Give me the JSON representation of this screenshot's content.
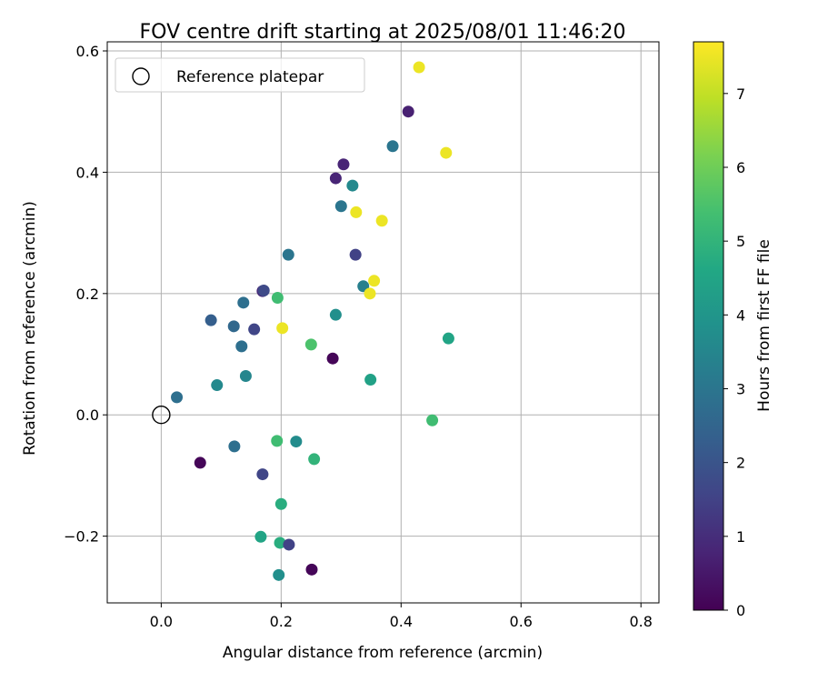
{
  "chart_data": {
    "type": "scatter",
    "title": "FOV centre drift starting at 2025/08/01 11:46:20",
    "xlabel": "Angular distance from reference (arcmin)",
    "ylabel": "Rotation from reference (arcmin)",
    "xlim": [
      -0.09,
      0.83
    ],
    "ylim": [
      -0.31,
      0.615
    ],
    "xticks": [
      0.0,
      0.2,
      0.4,
      0.6,
      0.8
    ],
    "xtick_labels": [
      "0.0",
      "0.2",
      "0.4",
      "0.6",
      "0.8"
    ],
    "yticks": [
      -0.2,
      0.0,
      0.2,
      0.4,
      0.6
    ],
    "ytick_labels": [
      "−0.2",
      "0.0",
      "0.2",
      "0.4",
      "0.6"
    ],
    "grid": true,
    "legend": {
      "placement": "top-left",
      "entries": [
        "Reference platepar"
      ]
    },
    "reference_point": {
      "x": 0.0,
      "y": 0.0,
      "marker": "open-circle"
    },
    "colorbar": {
      "label": "Hours from first FF file",
      "colormap": "viridis",
      "range": [
        0,
        7.7
      ],
      "ticks": [
        0,
        1,
        2,
        3,
        4,
        5,
        6,
        7
      ],
      "tick_labels": [
        "0",
        "1",
        "2",
        "3",
        "4",
        "5",
        "6",
        "7"
      ]
    },
    "points": [
      {
        "x": 0.43,
        "y": 0.573,
        "c": 7.5
      },
      {
        "x": 0.412,
        "y": 0.5,
        "c": 0.7
      },
      {
        "x": 0.386,
        "y": 0.443,
        "c": 3.0
      },
      {
        "x": 0.475,
        "y": 0.432,
        "c": 7.5
      },
      {
        "x": 0.304,
        "y": 0.413,
        "c": 0.8
      },
      {
        "x": 0.291,
        "y": 0.39,
        "c": 0.8
      },
      {
        "x": 0.319,
        "y": 0.378,
        "c": 3.6
      },
      {
        "x": 0.3,
        "y": 0.344,
        "c": 3.0
      },
      {
        "x": 0.325,
        "y": 0.334,
        "c": 7.5
      },
      {
        "x": 0.368,
        "y": 0.32,
        "c": 7.5
      },
      {
        "x": 0.212,
        "y": 0.264,
        "c": 3.0
      },
      {
        "x": 0.324,
        "y": 0.264,
        "c": 1.5
      },
      {
        "x": 0.355,
        "y": 0.221,
        "c": 7.5
      },
      {
        "x": 0.337,
        "y": 0.212,
        "c": 3.3
      },
      {
        "x": 0.169,
        "y": 0.204,
        "c": 0.9
      },
      {
        "x": 0.171,
        "y": 0.205,
        "c": 1.7
      },
      {
        "x": 0.348,
        "y": 0.2,
        "c": 7.5
      },
      {
        "x": 0.194,
        "y": 0.193,
        "c": 5.3
      },
      {
        "x": 0.137,
        "y": 0.185,
        "c": 2.8
      },
      {
        "x": 0.291,
        "y": 0.165,
        "c": 3.8
      },
      {
        "x": 0.083,
        "y": 0.156,
        "c": 2.3
      },
      {
        "x": 0.121,
        "y": 0.146,
        "c": 2.6
      },
      {
        "x": 0.202,
        "y": 0.143,
        "c": 7.5
      },
      {
        "x": 0.155,
        "y": 0.141,
        "c": 1.6
      },
      {
        "x": 0.479,
        "y": 0.126,
        "c": 4.5
      },
      {
        "x": 0.25,
        "y": 0.116,
        "c": 5.5
      },
      {
        "x": 0.134,
        "y": 0.113,
        "c": 2.8
      },
      {
        "x": 0.286,
        "y": 0.093,
        "c": 0.1
      },
      {
        "x": 0.141,
        "y": 0.064,
        "c": 3.5
      },
      {
        "x": 0.349,
        "y": 0.058,
        "c": 4.4
      },
      {
        "x": 0.093,
        "y": 0.049,
        "c": 3.6
      },
      {
        "x": 0.026,
        "y": 0.029,
        "c": 2.8
      },
      {
        "x": 0.452,
        "y": -0.009,
        "c": 5.3
      },
      {
        "x": 0.193,
        "y": -0.043,
        "c": 5.3
      },
      {
        "x": 0.225,
        "y": -0.044,
        "c": 3.7
      },
      {
        "x": 0.122,
        "y": -0.052,
        "c": 2.8
      },
      {
        "x": 0.255,
        "y": -0.073,
        "c": 5.0
      },
      {
        "x": 0.065,
        "y": -0.079,
        "c": 0.1
      },
      {
        "x": 0.169,
        "y": -0.098,
        "c": 1.6
      },
      {
        "x": 0.2,
        "y": -0.147,
        "c": 4.8
      },
      {
        "x": 0.166,
        "y": -0.201,
        "c": 4.5
      },
      {
        "x": 0.198,
        "y": -0.211,
        "c": 4.8
      },
      {
        "x": 0.213,
        "y": -0.214,
        "c": 1.5
      },
      {
        "x": 0.251,
        "y": -0.255,
        "c": 0.1
      },
      {
        "x": 0.196,
        "y": -0.264,
        "c": 3.8
      }
    ]
  }
}
